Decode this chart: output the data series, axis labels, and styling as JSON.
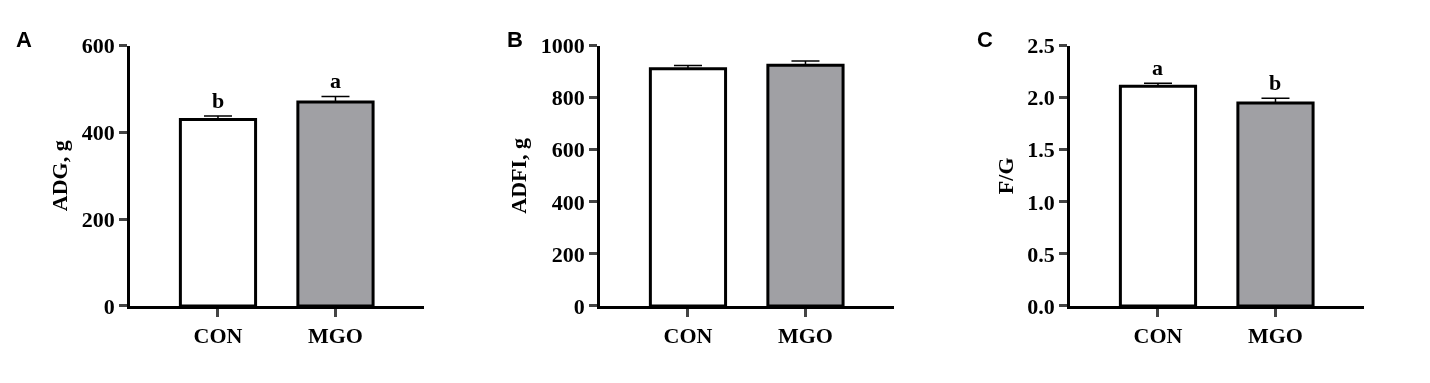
{
  "chart_data": [
    {
      "type": "bar",
      "title": "A",
      "ylabel": "ADG, g",
      "categories": [
        "CON",
        "MGO"
      ],
      "values": [
        430,
        470
      ],
      "colors": [
        "#ffffff",
        "#a0a0a4"
      ],
      "errors": [
        [
          430,
          438
        ],
        [
          470,
          483
        ]
      ],
      "ylim": [
        0,
        600
      ],
      "yticks": [
        0,
        200,
        400,
        600
      ],
      "annotations": [
        {
          "text": "b",
          "x": "CON",
          "y": 438
        },
        {
          "text": "a",
          "x": "MGO",
          "y": 483
        }
      ]
    },
    {
      "type": "bar",
      "title": "B",
      "ylabel": "ADFI, g",
      "categories": [
        "CON",
        "MGO"
      ],
      "values": [
        911,
        925
      ],
      "colors": [
        "#ffffff",
        "#a0a0a4"
      ],
      "errors": [
        [
          911,
          924
        ],
        [
          925,
          941
        ]
      ],
      "ylim": [
        0,
        1000
      ],
      "yticks": [
        0,
        200,
        400,
        600,
        800,
        1000
      ]
    },
    {
      "type": "bar",
      "title": "C",
      "ylabel": "F/G",
      "categories": [
        "CON",
        "MGO"
      ],
      "values": [
        2.11,
        1.95
      ],
      "colors": [
        "#ffffff",
        "#a0a0a4"
      ],
      "errors": [
        [
          2.11,
          2.14
        ],
        [
          1.95,
          1.995
        ]
      ],
      "ylim": [
        0,
        2.5
      ],
      "yticks": [
        {
          "value": 0,
          "label": "0.0"
        },
        {
          "value": 0.5,
          "label": "0.5"
        },
        {
          "value": 1,
          "label": "1.0"
        },
        {
          "value": 1.5,
          "label": "1.5"
        },
        {
          "value": 2,
          "label": "2.0"
        },
        {
          "value": 2.5,
          "label": "2.5"
        }
      ],
      "annotations": [
        {
          "text": "a",
          "x": "CON",
          "y": 2.14
        },
        {
          "text": "b",
          "x": "MGO",
          "y": 1.995
        }
      ]
    }
  ]
}
